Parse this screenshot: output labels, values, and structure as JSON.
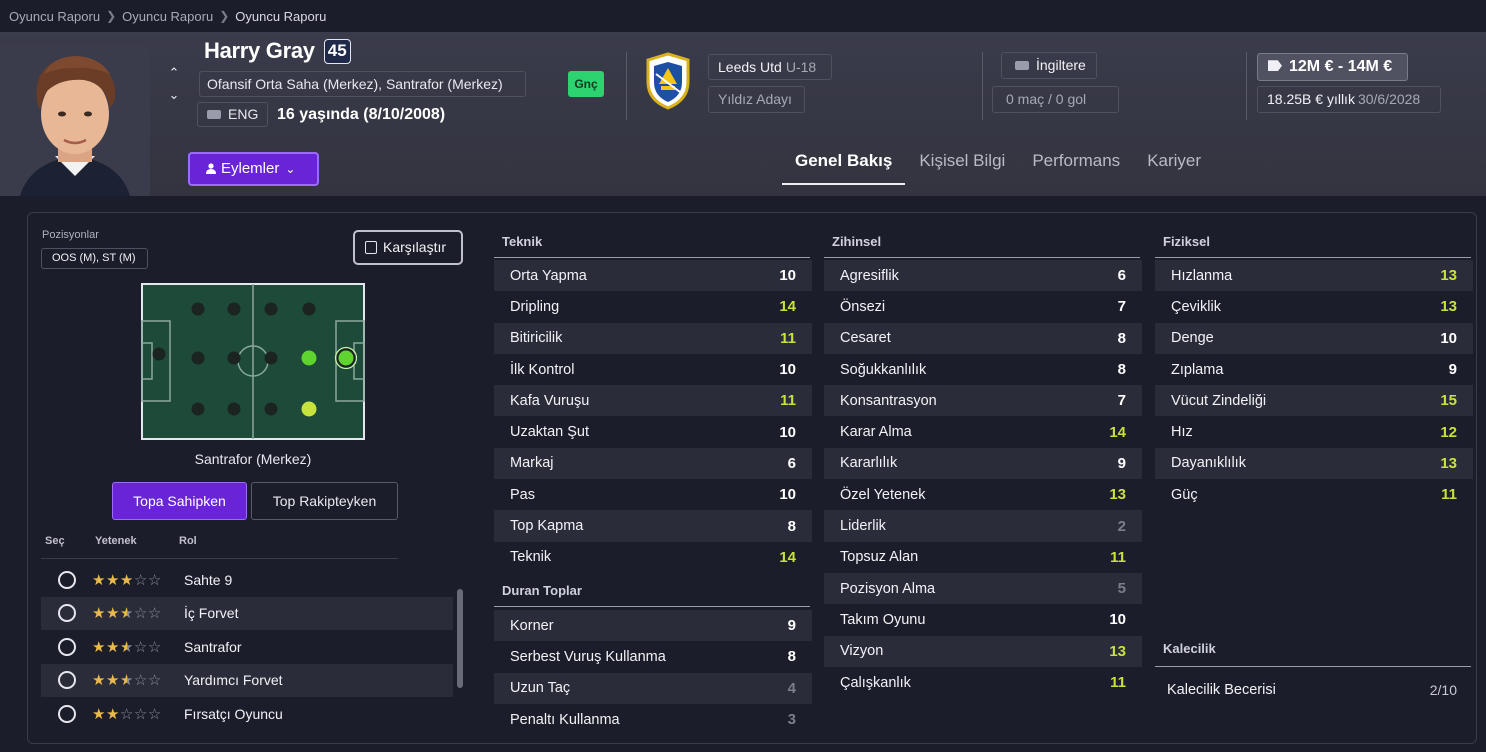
{
  "breadcrumb": [
    "Oyuncu Raporu",
    "Oyuncu Raporu",
    "Oyuncu Raporu"
  ],
  "player": {
    "name": "Harry Gray",
    "ability": "45",
    "positions_full": "Ofansif Orta Saha (Merkez), Santrafor (Merkez)",
    "nationality": "ENG",
    "age": "16 yaşında (8/10/2008)",
    "young_tag": "Gnç"
  },
  "club": {
    "name": "Leeds Utd",
    "team": "U-18",
    "role": "Yıldız Adayı"
  },
  "international": {
    "country": "İngiltere",
    "apps": "0 maç / 0 gol"
  },
  "contract": {
    "value": "12M € - 14M €",
    "wage": "18.25B € yıllık",
    "expiry": "30/6/2028"
  },
  "actions_label": "Eylemler",
  "tabs": [
    "Genel Bakış",
    "Kişisel Bilgi",
    "Performans",
    "Kariyer"
  ],
  "positions_panel": {
    "label": "Pozisyonlar",
    "tag": "OOS (M), ST (M)",
    "compare": "Karşılaştır",
    "pitch_caption": "Santrafor (Merkez)",
    "mode_active": "Topa Sahipken",
    "mode_inactive": "Top Rakipteyken"
  },
  "role_table": {
    "headers": [
      "Seç",
      "Yetenek",
      "Rol"
    ],
    "rows": [
      {
        "name": "Sahte 9",
        "stars": 3
      },
      {
        "name": "İç Forvet",
        "stars": 2.5
      },
      {
        "name": "Santrafor",
        "stars": 2.5
      },
      {
        "name": "Yardımcı Forvet",
        "stars": 2.5
      },
      {
        "name": "Fırsatçı Oyuncu",
        "stars": 2
      }
    ]
  },
  "technical": {
    "title": "Teknik",
    "rows": [
      {
        "name": "Orta Yapma",
        "value": "10",
        "tone": "n"
      },
      {
        "name": "Dripling",
        "value": "14",
        "tone": "hi"
      },
      {
        "name": "Bitiricilik",
        "value": "11",
        "tone": "hi"
      },
      {
        "name": "İlk Kontrol",
        "value": "10",
        "tone": "n"
      },
      {
        "name": "Kafa Vuruşu",
        "value": "11",
        "tone": "hi"
      },
      {
        "name": "Uzaktan Şut",
        "value": "10",
        "tone": "n"
      },
      {
        "name": "Markaj",
        "value": "6",
        "tone": "n"
      },
      {
        "name": "Pas",
        "value": "10",
        "tone": "n"
      },
      {
        "name": "Top Kapma",
        "value": "8",
        "tone": "n"
      },
      {
        "name": "Teknik",
        "value": "14",
        "tone": "hi"
      }
    ]
  },
  "set_pieces": {
    "title": "Duran Toplar",
    "rows": [
      {
        "name": "Korner",
        "value": "9",
        "tone": "n"
      },
      {
        "name": "Serbest Vuruş Kullanma",
        "value": "8",
        "tone": "n"
      },
      {
        "name": "Uzun Taç",
        "value": "4",
        "tone": "lo"
      },
      {
        "name": "Penaltı Kullanma",
        "value": "3",
        "tone": "lo"
      }
    ]
  },
  "mental": {
    "title": "Zihinsel",
    "rows": [
      {
        "name": "Agresiflik",
        "value": "6",
        "tone": "n"
      },
      {
        "name": "Önsezi",
        "value": "7",
        "tone": "n"
      },
      {
        "name": "Cesaret",
        "value": "8",
        "tone": "n"
      },
      {
        "name": "Soğukkanlılık",
        "value": "8",
        "tone": "n"
      },
      {
        "name": "Konsantrasyon",
        "value": "7",
        "tone": "n"
      },
      {
        "name": "Karar Alma",
        "value": "14",
        "tone": "hi"
      },
      {
        "name": "Kararlılık",
        "value": "9",
        "tone": "n"
      },
      {
        "name": "Özel Yetenek",
        "value": "13",
        "tone": "hi"
      },
      {
        "name": "Liderlik",
        "value": "2",
        "tone": "lo"
      },
      {
        "name": "Topsuz Alan",
        "value": "11",
        "tone": "hi"
      },
      {
        "name": "Pozisyon Alma",
        "value": "5",
        "tone": "lo"
      },
      {
        "name": "Takım Oyunu",
        "value": "10",
        "tone": "n"
      },
      {
        "name": "Vizyon",
        "value": "13",
        "tone": "hi"
      },
      {
        "name": "Çalışkanlık",
        "value": "11",
        "tone": "hi"
      }
    ]
  },
  "physical": {
    "title": "Fiziksel",
    "rows": [
      {
        "name": "Hızlanma",
        "value": "13",
        "tone": "hi"
      },
      {
        "name": "Çeviklik",
        "value": "13",
        "tone": "hi"
      },
      {
        "name": "Denge",
        "value": "10",
        "tone": "n"
      },
      {
        "name": "Zıplama",
        "value": "9",
        "tone": "n"
      },
      {
        "name": "Vücut Zindeliği",
        "value": "15",
        "tone": "hi"
      },
      {
        "name": "Hız",
        "value": "12",
        "tone": "hi"
      },
      {
        "name": "Dayanıklılık",
        "value": "13",
        "tone": "hi"
      },
      {
        "name": "Güç",
        "value": "11",
        "tone": "hi"
      }
    ]
  },
  "goalkeeping": {
    "title": "Kalecilik",
    "label": "Kalecilik Becerisi",
    "value": "2/10"
  },
  "colors": {
    "accent": "#6a24d8",
    "highlight": "#c9e23a",
    "low": "#7d7e8b",
    "young_tag": "#2dd36f"
  }
}
